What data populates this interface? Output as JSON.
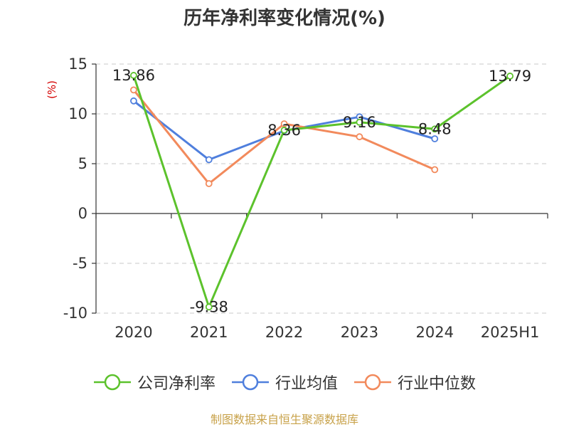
{
  "title": "历年净利率变化情况(%)",
  "source": "制图数据来自恒生聚源数据库",
  "chart_data": {
    "type": "line",
    "title": "历年净利率变化情况(%)",
    "ylabel": "(%)",
    "categories": [
      "2020",
      "2021",
      "2022",
      "2023",
      "2024",
      "2025H1"
    ],
    "ylim": [
      -10,
      15
    ],
    "yticks": [
      15,
      10,
      5,
      0,
      -5,
      -10
    ],
    "grid": true,
    "legend_position": "bottom",
    "series": [
      {
        "name": "公司净利率",
        "color": "#5cc22c",
        "values": [
          13.86,
          -9.38,
          8.36,
          9.16,
          8.48,
          13.79
        ],
        "labels": [
          "13.86",
          "-9.38",
          "8.36",
          "9.16",
          "8.48",
          "13.79"
        ]
      },
      {
        "name": "行业均值",
        "color": "#4f7fdd",
        "values": [
          11.3,
          5.4,
          8.3,
          9.7,
          7.5,
          null
        ]
      },
      {
        "name": "行业中位数",
        "color": "#f28a5c",
        "values": [
          12.4,
          3.0,
          9.0,
          7.7,
          4.4,
          null
        ]
      }
    ]
  }
}
